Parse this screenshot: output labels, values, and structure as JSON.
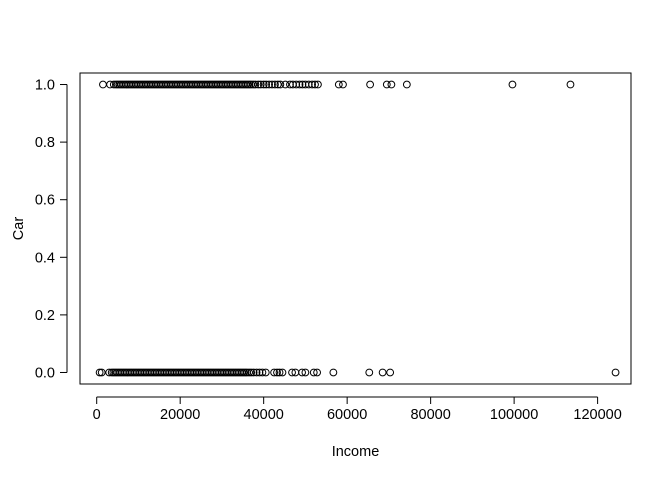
{
  "chart_data": {
    "type": "scatter",
    "title": "",
    "xlabel": "Income",
    "ylabel": "Car",
    "xlim": [
      -4000,
      128000
    ],
    "ylim": [
      -0.04,
      1.04
    ],
    "x_ticks": [
      0,
      20000,
      40000,
      60000,
      80000,
      100000,
      120000
    ],
    "x_tick_labels": [
      "0",
      "20000",
      "40000",
      "60000",
      "80000",
      "100000",
      "120000"
    ],
    "y_ticks": [
      0.0,
      0.2,
      0.4,
      0.6,
      0.8,
      1.0
    ],
    "y_tick_labels": [
      "0.0",
      "0.2",
      "0.4",
      "0.6",
      "0.8",
      "1.0"
    ],
    "grid": false,
    "series": [
      {
        "y": 1,
        "x": [
          1500,
          3200,
          4100,
          4600,
          5000,
          5400,
          5800,
          6200,
          6600,
          7000,
          7400,
          7800,
          8200,
          8600,
          9000,
          9400,
          9800,
          10200,
          10600,
          11000,
          11400,
          11800,
          12200,
          12600,
          13000,
          13400,
          13800,
          14200,
          14600,
          15000,
          15400,
          15800,
          16200,
          16600,
          17000,
          17400,
          17800,
          18200,
          18600,
          19000,
          19400,
          19800,
          20200,
          20600,
          21000,
          21400,
          21800,
          22200,
          22600,
          23000,
          23400,
          23800,
          24200,
          24600,
          25000,
          25400,
          25800,
          26200,
          26600,
          27000,
          27400,
          27800,
          28200,
          28600,
          29000,
          29400,
          29800,
          30200,
          30600,
          31000,
          31400,
          31800,
          32200,
          32600,
          33000,
          33400,
          33800,
          34200,
          34600,
          35000,
          35400,
          35800,
          36200,
          36600,
          37000,
          37500,
          38000,
          38700,
          39300,
          40000,
          40600,
          41300,
          42000,
          42700,
          43400,
          44000,
          45200,
          46300,
          47000,
          47800,
          48600,
          49300,
          50000,
          50800,
          51600,
          52300,
          53000,
          58000,
          59000,
          65500,
          69500,
          70600,
          74300,
          99600,
          113500
        ]
      },
      {
        "y": 0,
        "x": [
          700,
          1200,
          3000,
          3600,
          4000,
          4400,
          4800,
          5200,
          5600,
          6000,
          6400,
          6800,
          7200,
          7600,
          8000,
          8400,
          8800,
          9200,
          9600,
          10000,
          10400,
          10800,
          11200,
          11600,
          12000,
          12400,
          12800,
          13200,
          13600,
          14000,
          14400,
          14800,
          15200,
          15600,
          16000,
          16400,
          16800,
          17200,
          17600,
          18000,
          18400,
          18800,
          19200,
          19600,
          20000,
          20400,
          20800,
          21200,
          21600,
          22000,
          22400,
          22800,
          23200,
          23600,
          24000,
          24400,
          24800,
          25200,
          25600,
          26000,
          26400,
          26800,
          27200,
          27600,
          28000,
          28400,
          28800,
          29200,
          29600,
          30000,
          30400,
          30800,
          31200,
          31600,
          32000,
          32400,
          32800,
          33200,
          33600,
          34000,
          34400,
          34800,
          35200,
          35600,
          36000,
          36500,
          37000,
          37600,
          38300,
          39000,
          39700,
          40500,
          42500,
          43200,
          43800,
          44500,
          46800,
          47600,
          49200,
          50000,
          52000,
          52800,
          56700,
          65300,
          68500,
          70300,
          124300
        ]
      }
    ]
  }
}
